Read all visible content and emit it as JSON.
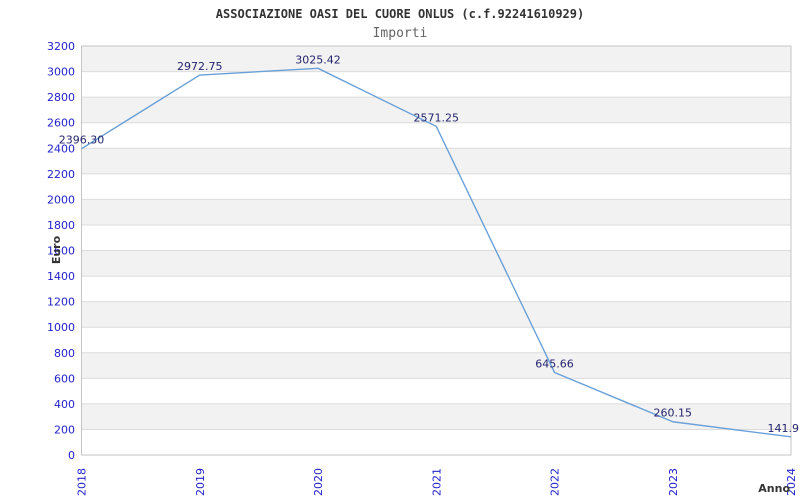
{
  "chart_data": {
    "type": "line",
    "title": "ASSOCIAZIONE OASI DEL CUORE ONLUS (c.f.92241610929)",
    "subtitle": "Importi",
    "xlabel": "Anno",
    "ylabel": "Euro",
    "categories": [
      "2018",
      "2019",
      "2020",
      "2021",
      "2022",
      "2023",
      "2024"
    ],
    "series": [
      {
        "name": "Importi",
        "values": [
          2396.3,
          2972.75,
          3025.42,
          2571.25,
          645.66,
          260.15,
          141.9
        ]
      }
    ],
    "data_labels": [
      "2396.30",
      "2972.75",
      "3025.42",
      "2571.25",
      "645.66",
      "260.15",
      "141.9"
    ],
    "ylim": [
      0,
      3200
    ],
    "yticks": [
      0,
      200,
      400,
      600,
      800,
      1000,
      1200,
      1400,
      1600,
      1800,
      2000,
      2200,
      2400,
      2600,
      2800,
      3000,
      3200
    ],
    "grid": "horizontal",
    "banding": "alternating-horizontal-bands",
    "legend": "none",
    "x_tick_rotation": -90,
    "colors": {
      "line": "#6aa0d8",
      "tick_label": "#2222cc",
      "data_label": "#24246e",
      "band": "#f2f2f2",
      "grid": "#dcdcdc",
      "border": "#c4c4c4",
      "title": "#333333",
      "subtitle": "#666666",
      "axis_title": "#333333",
      "background": "#ffffff"
    }
  }
}
